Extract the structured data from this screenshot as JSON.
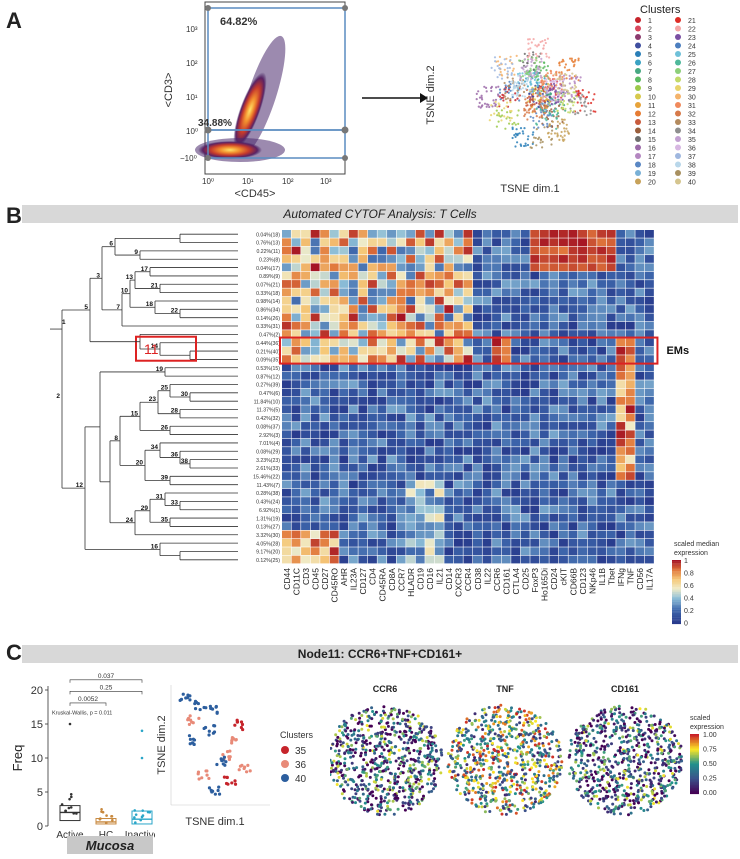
{
  "panels": {
    "a": "A",
    "b": "B",
    "c": "C"
  },
  "panel_a": {
    "gate_upper_pct": "64.82%",
    "gate_lower_pct": "34.88%",
    "y_label": "<CD3>",
    "x_label": "<CD45>",
    "y_ticks": [
      "10³",
      "10²",
      "10¹",
      "10⁰",
      "−10⁰"
    ],
    "x_ticks": [
      "10⁰",
      "10¹",
      "10²",
      "10³"
    ],
    "tsne_x_label": "TSNE dim.1",
    "tsne_y_label": "TSNE dim.2",
    "legend_title": "Clusters",
    "clusters": [
      "1",
      "2",
      "3",
      "4",
      "5",
      "6",
      "7",
      "8",
      "9",
      "10",
      "11",
      "12",
      "13",
      "14",
      "15",
      "16",
      "17",
      "18",
      "19",
      "20",
      "21",
      "22",
      "23",
      "24",
      "25",
      "26",
      "27",
      "28",
      "29",
      "30",
      "31",
      "32",
      "33",
      "34",
      "35",
      "36",
      "37",
      "38",
      "39",
      "40"
    ],
    "cluster_colors": [
      "#c6242b",
      "#d9475c",
      "#8c3b6e",
      "#3f4fa0",
      "#2a7fb8",
      "#3aa2c3",
      "#47a882",
      "#5dbb63",
      "#9cc94a",
      "#d7c94c",
      "#e7a33a",
      "#e67c33",
      "#c85b3c",
      "#9a5f3d",
      "#6d6d6d",
      "#9b6aa8",
      "#b487c1",
      "#5a87c4",
      "#79b0d6",
      "#c7a25a",
      "#de2d26",
      "#f4a6a6",
      "#7a4fa3",
      "#4c7fbf",
      "#6fc1d9",
      "#4fb89b",
      "#8dcf7a",
      "#c3da6a",
      "#e8d46b",
      "#f4b36b",
      "#f08a5c",
      "#d77a4a",
      "#b38a5e",
      "#8f8f8f",
      "#c2a0d1",
      "#d7b7e2",
      "#9fb7df",
      "#b9d7ea",
      "#a89060",
      "#d5c58f"
    ]
  },
  "panel_b": {
    "banner": "Automated CYTOF Analysis: T Cells",
    "em_label": "EMs",
    "node_highlight": "11",
    "markers": [
      "CD44",
      "CD11C",
      "CD3",
      "CD45",
      "CD27",
      "CD45RO",
      "AHR",
      "IL23A",
      "CD127",
      "CD4",
      "CD45RA",
      "CD8A",
      "CCR7",
      "HLADR",
      "CD19",
      "CD16",
      "IL21",
      "CD14",
      "CXCR3",
      "CCR4",
      "CD38",
      "IL22",
      "CCR6",
      "CD161",
      "CTLA4",
      "CD25",
      "FoxP3",
      "Ho165Di",
      "CD24",
      "cKIT",
      "CD66B",
      "CD123",
      "NKp46",
      "IL1B",
      "Tbet",
      "IFNg",
      "TNF",
      "CD56",
      "IL17A"
    ],
    "rows": [
      "0.04%(18)",
      "0.76%(13)",
      "0.22%(11)",
      "0.23%(8)",
      "0.04%(17)",
      "0.89%(9)",
      "0.07%(21)",
      "0.33%(18)",
      "0.98%(14)",
      "0.86%(34)",
      "0.14%(26)",
      "0.33%(31)",
      "0.47%(2)",
      "0.44%(36)",
      "0.21%(40)",
      "0.09%(35)",
      "0.53%(15)",
      "0.87%(12)",
      "0.27%(39)",
      "0.47%(6)",
      "11.84%(10)",
      "11.37%(5)",
      "0.42%(32)",
      "0.08%(37)",
      "2.92%(3)",
      "7.01%(4)",
      "0.08%(29)",
      "3.23%(23)",
      "2.61%(33)",
      "15.46%(22)",
      "11.43%(7)",
      "0.28%(38)",
      "0.43%(24)",
      "6.92%(1)",
      "1.31%(19)",
      "0.13%(27)",
      "3.32%(30)",
      "4.05%(28)",
      "9.17%(20)",
      "0.12%(25)"
    ],
    "tree_nodes": [
      "1",
      "2",
      "3",
      "4",
      "5",
      "6",
      "7",
      "8",
      "9",
      "10",
      "12",
      "13",
      "14",
      "15",
      "16",
      "17",
      "18",
      "19",
      "20",
      "21",
      "22",
      "23",
      "24",
      "25",
      "26",
      "27",
      "28",
      "29",
      "30",
      "31",
      "32",
      "33",
      "34",
      "35",
      "36",
      "37",
      "38",
      "39"
    ],
    "colorbar_title_1": "scaled median",
    "colorbar_title_2": "expression",
    "colorbar_ticks": [
      "1",
      "0.8",
      "0.6",
      "0.4",
      "0.2",
      "0"
    ]
  },
  "panel_c": {
    "banner": "Node11: CCR6+TNF+CD161+",
    "box_y_label": "Freq",
    "box_y_ticks": [
      "20",
      "15",
      "10",
      "5",
      "0"
    ],
    "box_groups": [
      "Active",
      "HC",
      "Inactive"
    ],
    "box_medians": [
      2.0,
      0.6,
      1.0
    ],
    "box_q1": [
      0.8,
      0.3,
      0.3
    ],
    "box_q3": [
      3.0,
      1.1,
      2.2
    ],
    "pvalues": [
      "0.037",
      "0.25",
      "0.0052"
    ],
    "kruskal": "Kruskal-Wallis, p = 0.011",
    "tissue_label": "Mucosa",
    "tsne_x_label": "TSNE dim.1",
    "tsne_y_label": "TSNE dim.2",
    "legend_title": "Clusters",
    "legend_items": [
      "35",
      "36",
      "40"
    ],
    "legend_colors": [
      "#c6242b",
      "#e88a78",
      "#2c5e9e"
    ],
    "map_titles": [
      "CCR6",
      "TNF",
      "CD161"
    ],
    "scaled_title_1": "scaled",
    "scaled_title_2": "expression",
    "scaled_ticks": [
      "1.00",
      "0.75",
      "0.50",
      "0.25",
      "0.00"
    ]
  }
}
